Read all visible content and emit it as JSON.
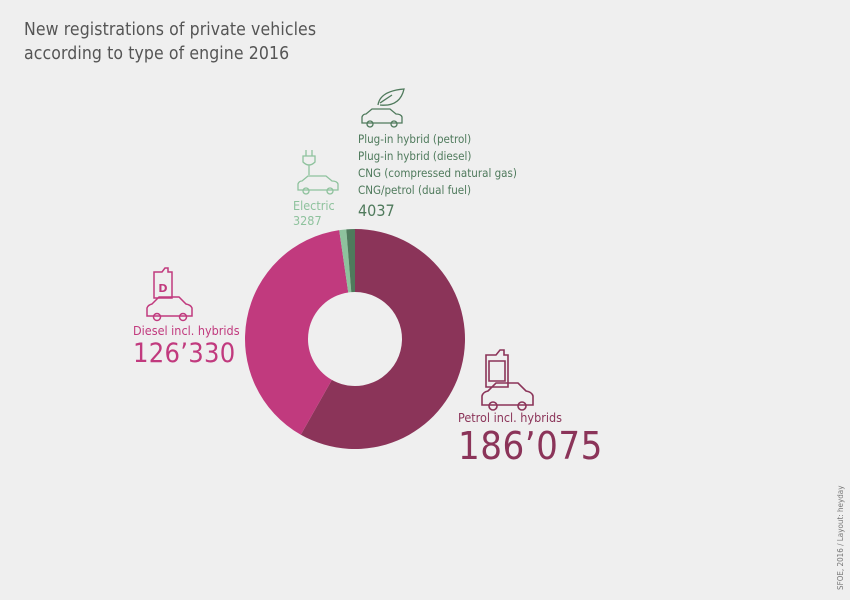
{
  "title_lines": [
    "New registrations of private vehicles",
    "according to type of engine 2016"
  ],
  "colors": {
    "petrol": "#8b3459",
    "diesel": "#c13a7e",
    "electric": "#8ec29d",
    "other": "#4f7a5c"
  },
  "icons": {
    "petrol": "fuel-can-car-icon",
    "diesel": "diesel-can-car-icon",
    "electric": "plug-car-icon",
    "other": "leaf-car-icon"
  },
  "credit": "SFOE, 2016 / Layout: heyday",
  "chart_data": {
    "type": "donut",
    "title": "New registrations of private vehicles according to type of engine 2016",
    "segments": [
      {
        "key": "petrol",
        "labels": [
          "Petrol incl. hybrids"
        ],
        "value": 186075,
        "value_text": "186’075"
      },
      {
        "key": "diesel",
        "labels": [
          "Diesel incl. hybrids"
        ],
        "value": 126330,
        "value_text": "126’330"
      },
      {
        "key": "electric",
        "labels": [
          "Electric"
        ],
        "value": 3287,
        "value_text": "3287"
      },
      {
        "key": "other",
        "labels": [
          "Plug-in hybrid (petrol)",
          "Plug-in hybrid (diesel)",
          "CNG (compressed natural gas)",
          "CNG/petrol (dual fuel)"
        ],
        "value": 4037,
        "value_text": "4037"
      }
    ]
  }
}
